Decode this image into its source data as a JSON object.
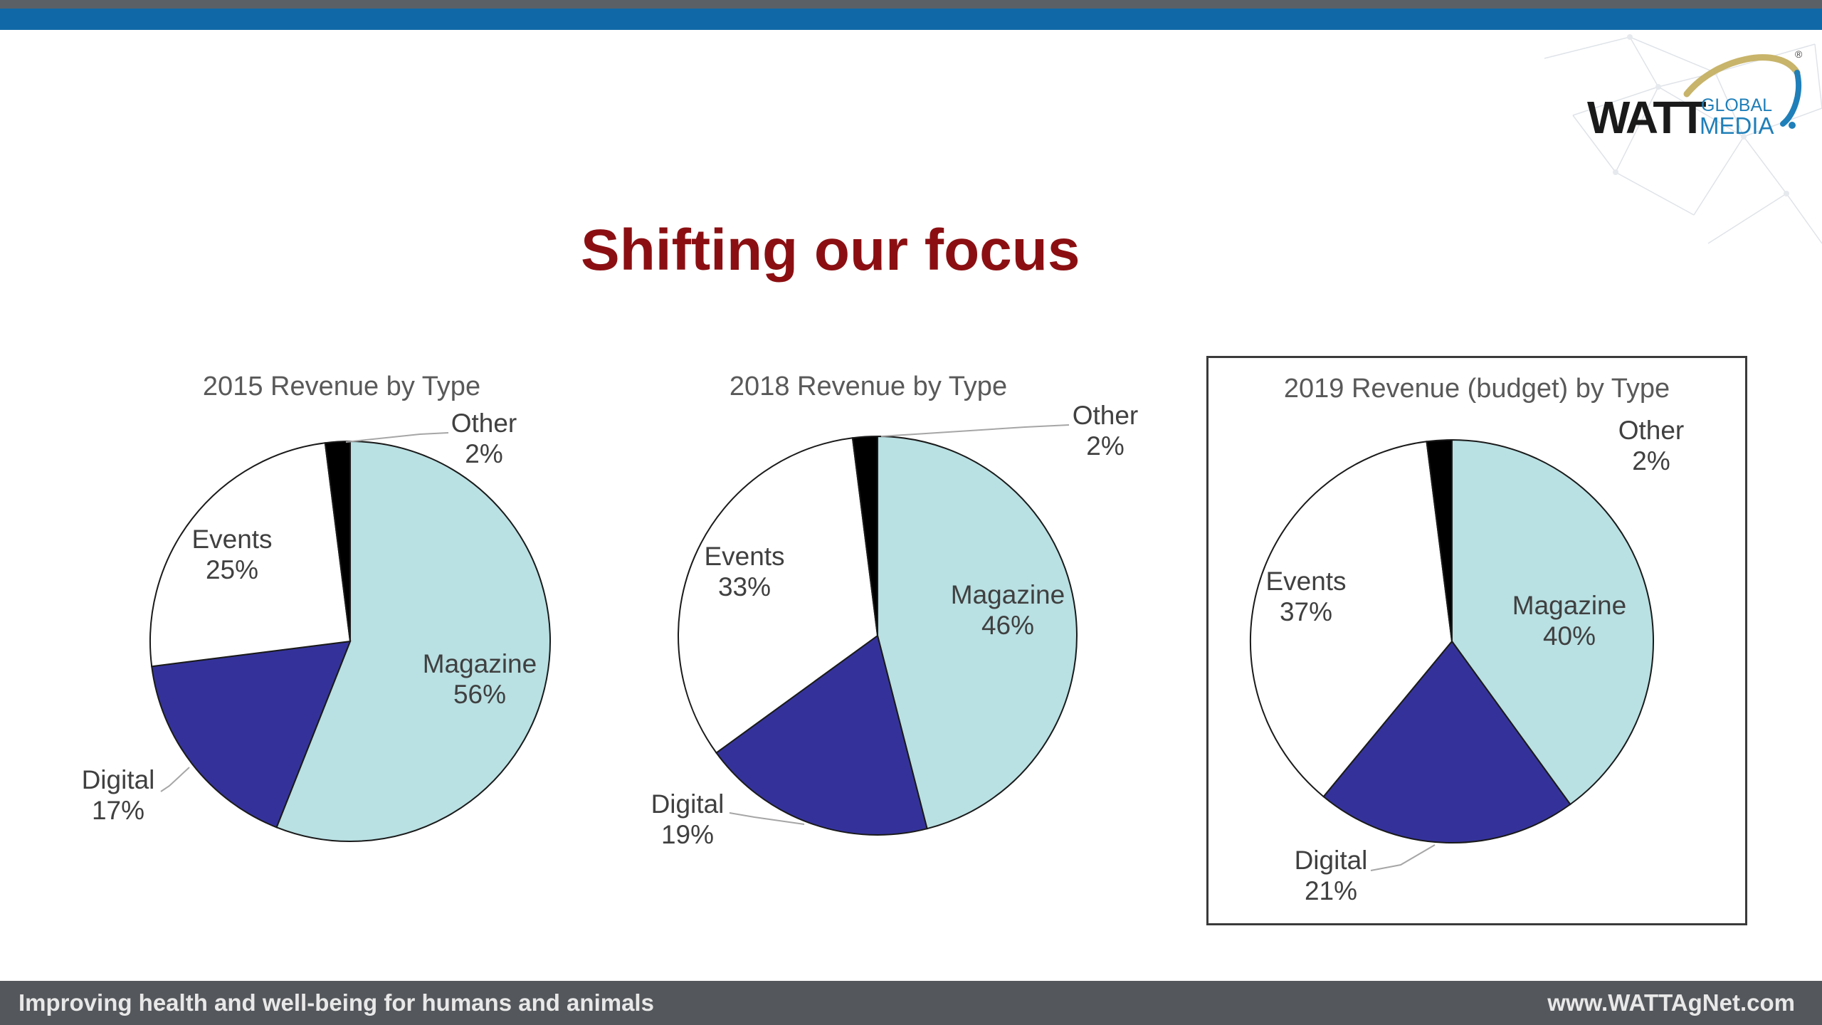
{
  "slide": {
    "title": "Shifting our focus",
    "footer_left": "Improving health and well-being for humans and animals",
    "footer_right": "www.WATTAgNet.com"
  },
  "logo": {
    "word": "WATT",
    "sub1": "GLOBAL",
    "sub2": "MEDIA",
    "mark": "®",
    "accent_gold": "#c8b46a",
    "accent_blue": "#1f7fb9"
  },
  "colors": {
    "Magazine": "#b9e0e3",
    "Digital": "#34329a",
    "Events": "#ffffff",
    "Other": "#000000",
    "title_red": "#8b0f12",
    "topbar_blue": "#1168a6",
    "footer_gray": "#54575b"
  },
  "chart_data": [
    {
      "type": "pie",
      "title": "2015 Revenue by Type",
      "boxed": false,
      "slices": [
        {
          "name": "Magazine",
          "value": 56,
          "label": "56%"
        },
        {
          "name": "Digital",
          "value": 17,
          "label": "17%"
        },
        {
          "name": "Events",
          "value": 25,
          "label": "25%"
        },
        {
          "name": "Other",
          "value": 2,
          "label": "2%"
        }
      ]
    },
    {
      "type": "pie",
      "title": "2018 Revenue by Type",
      "boxed": false,
      "slices": [
        {
          "name": "Magazine",
          "value": 46,
          "label": "46%"
        },
        {
          "name": "Digital",
          "value": 19,
          "label": "19%"
        },
        {
          "name": "Events",
          "value": 33,
          "label": "33%"
        },
        {
          "name": "Other",
          "value": 2,
          "label": "2%"
        }
      ]
    },
    {
      "type": "pie",
      "title": "2019 Revenue (budget) by Type",
      "boxed": true,
      "slices": [
        {
          "name": "Magazine",
          "value": 40,
          "label": "40%"
        },
        {
          "name": "Digital",
          "value": 21,
          "label": "21%"
        },
        {
          "name": "Events",
          "value": 37,
          "label": "37%"
        },
        {
          "name": "Other",
          "value": 2,
          "label": "2%"
        }
      ]
    }
  ]
}
